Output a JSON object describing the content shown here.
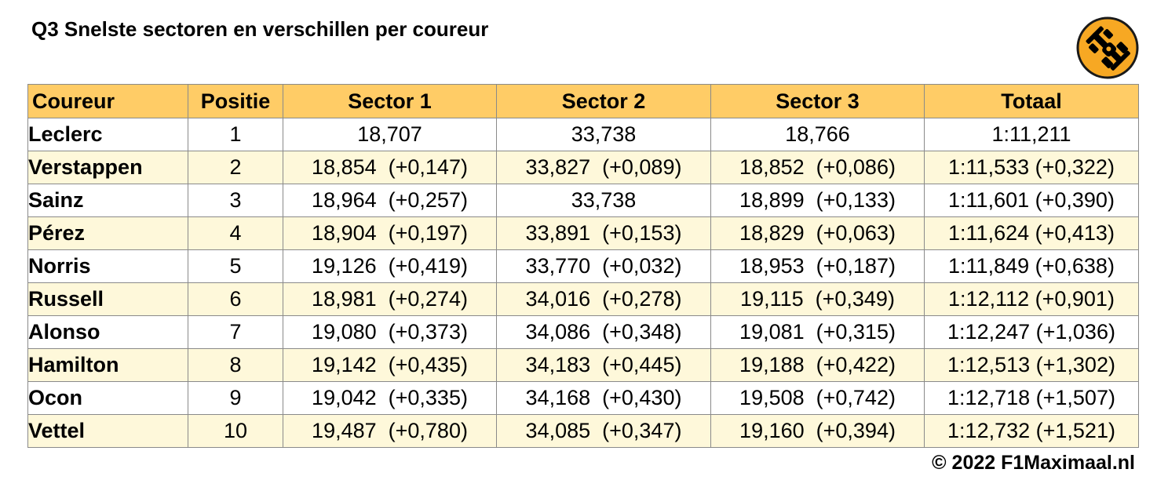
{
  "title": "Q3 Snelste sectoren en verschillen per coureur",
  "logo": {
    "icon": "f1-car-icon",
    "bg_color": "#f7a823",
    "fg_color": "#000000"
  },
  "colors": {
    "header_bg": "#ffcc66",
    "alt_row_bg": "#fef8da",
    "grid": "#8a8a8a"
  },
  "table": {
    "headers": [
      "Coureur",
      "Positie",
      "Sector 1",
      "Sector 2",
      "Sector 3",
      "Totaal"
    ],
    "rows": [
      {
        "driver": "Leclerc",
        "position": "1",
        "s1": "18,707",
        "s2": "33,738",
        "s3": "18,766",
        "total": "1:11,211"
      },
      {
        "driver": "Verstappen",
        "position": "2",
        "s1": "18,854  (+0,147)",
        "s2": "33,827  (+0,089)",
        "s3": "18,852  (+0,086)",
        "total": "1:11,533 (+0,322)"
      },
      {
        "driver": "Sainz",
        "position": "3",
        "s1": "18,964  (+0,257)",
        "s2": "33,738",
        "s3": "18,899  (+0,133)",
        "total": "1:11,601 (+0,390)"
      },
      {
        "driver": "Pérez",
        "position": "4",
        "s1": "18,904  (+0,197)",
        "s2": "33,891  (+0,153)",
        "s3": "18,829  (+0,063)",
        "total": "1:11,624 (+0,413)"
      },
      {
        "driver": "Norris",
        "position": "5",
        "s1": "19,126  (+0,419)",
        "s2": "33,770  (+0,032)",
        "s3": "18,953  (+0,187)",
        "total": "1:11,849 (+0,638)"
      },
      {
        "driver": "Russell",
        "position": "6",
        "s1": "18,981  (+0,274)",
        "s2": "34,016  (+0,278)",
        "s3": "19,115  (+0,349)",
        "total": "1:12,112 (+0,901)"
      },
      {
        "driver": "Alonso",
        "position": "7",
        "s1": "19,080  (+0,373)",
        "s2": "34,086  (+0,348)",
        "s3": "19,081  (+0,315)",
        "total": "1:12,247 (+1,036)"
      },
      {
        "driver": "Hamilton",
        "position": "8",
        "s1": "19,142  (+0,435)",
        "s2": "34,183  (+0,445)",
        "s3": "19,188  (+0,422)",
        "total": "1:12,513 (+1,302)"
      },
      {
        "driver": "Ocon",
        "position": "9",
        "s1": "19,042  (+0,335)",
        "s2": "34,168  (+0,430)",
        "s3": "19,508  (+0,742)",
        "total": "1:12,718 (+1,507)"
      },
      {
        "driver": "Vettel",
        "position": "10",
        "s1": "19,487  (+0,780)",
        "s2": "34,085  (+0,347)",
        "s3": "19,160  (+0,394)",
        "total": "1:12,732 (+1,521)"
      }
    ]
  },
  "copyright": "© 2022 F1Maximaal.nl"
}
